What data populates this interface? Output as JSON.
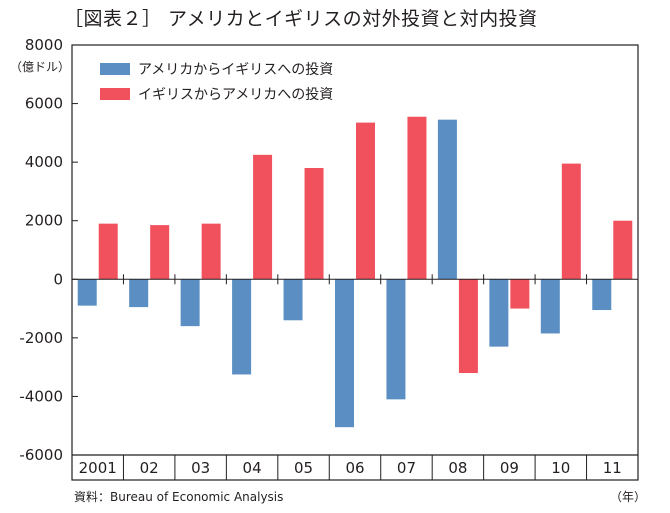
{
  "title": "［図表２］ アメリカとイギリスの対外投資と対内投資",
  "unit_label": "（億ドル）",
  "source": "資料：Bureau of Economic Analysis",
  "x_unit": "（年）",
  "colors": {
    "series_us_to_uk": "#5b8fc3",
    "series_uk_to_us": "#f0515c"
  },
  "chart_data": {
    "type": "bar",
    "categories": [
      "2001",
      "02",
      "03",
      "04",
      "05",
      "06",
      "07",
      "08",
      "09",
      "10",
      "11"
    ],
    "series": [
      {
        "name": "アメリカからイギリスへの投資",
        "values": [
          -900,
          -950,
          -1600,
          -3250,
          -1400,
          -5050,
          -4100,
          5450,
          -2300,
          -1850,
          -1050
        ]
      },
      {
        "name": "イギリスからアメリカへの投資",
        "values": [
          1900,
          1850,
          1900,
          4250,
          3800,
          5350,
          5550,
          -3200,
          -1000,
          3950,
          2000
        ]
      }
    ],
    "ylim": [
      -6000,
      8000
    ],
    "yticks": [
      "8000",
      "6000",
      "4000",
      "2000",
      "0",
      "-2000",
      "-4000",
      "-6000"
    ],
    "ylabel": "（億ドル）",
    "xlabel": "（年）",
    "legend_position": "top-left",
    "grid": false
  }
}
